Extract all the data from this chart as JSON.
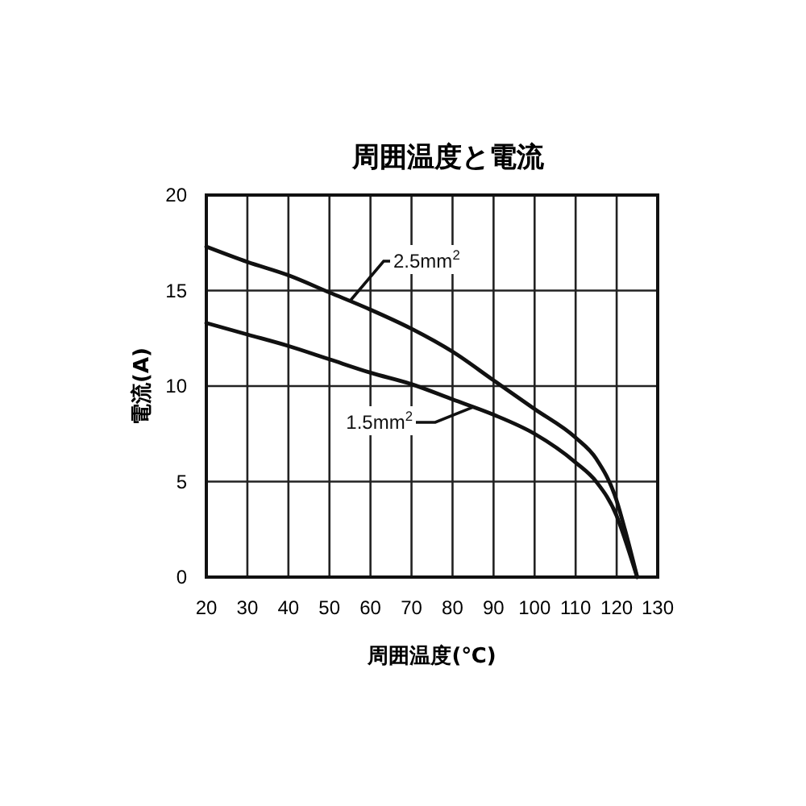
{
  "chart_data": {
    "type": "line",
    "title": "周囲温度と電流",
    "xlabel": "周囲温度(℃)",
    "ylabel": "電流(A)",
    "xlim": [
      20,
      130
    ],
    "xticks": [
      20,
      30,
      40,
      50,
      60,
      70,
      80,
      90,
      100,
      110,
      120,
      130
    ],
    "ylim": [
      0,
      20
    ],
    "yticks": [
      0,
      5,
      10,
      15,
      20
    ],
    "grid": true,
    "marker": "none",
    "line_style": "solid",
    "series": [
      {
        "name": "2.5mm$^{2}$",
        "color": "#111111",
        "x": [
          20,
          30,
          40,
          50,
          60,
          70,
          80,
          90,
          100,
          110,
          115,
          120,
          122,
          125
        ],
        "values": [
          17.3,
          16.5,
          15.8,
          14.9,
          14,
          13,
          11.8,
          10.3,
          8.8,
          7.3,
          6.2,
          4,
          2.5,
          0
        ]
      },
      {
        "name": "1.5mm$^{2}$",
        "color": "#111111",
        "x": [
          20,
          30,
          40,
          50,
          60,
          70,
          80,
          90,
          100,
          110,
          115,
          120,
          122,
          125
        ],
        "values": [
          13.3,
          12.7,
          12.1,
          11.4,
          10.7,
          10.1,
          9.3,
          8.5,
          7.5,
          6,
          5,
          3.2,
          2,
          0
        ]
      }
    ]
  }
}
